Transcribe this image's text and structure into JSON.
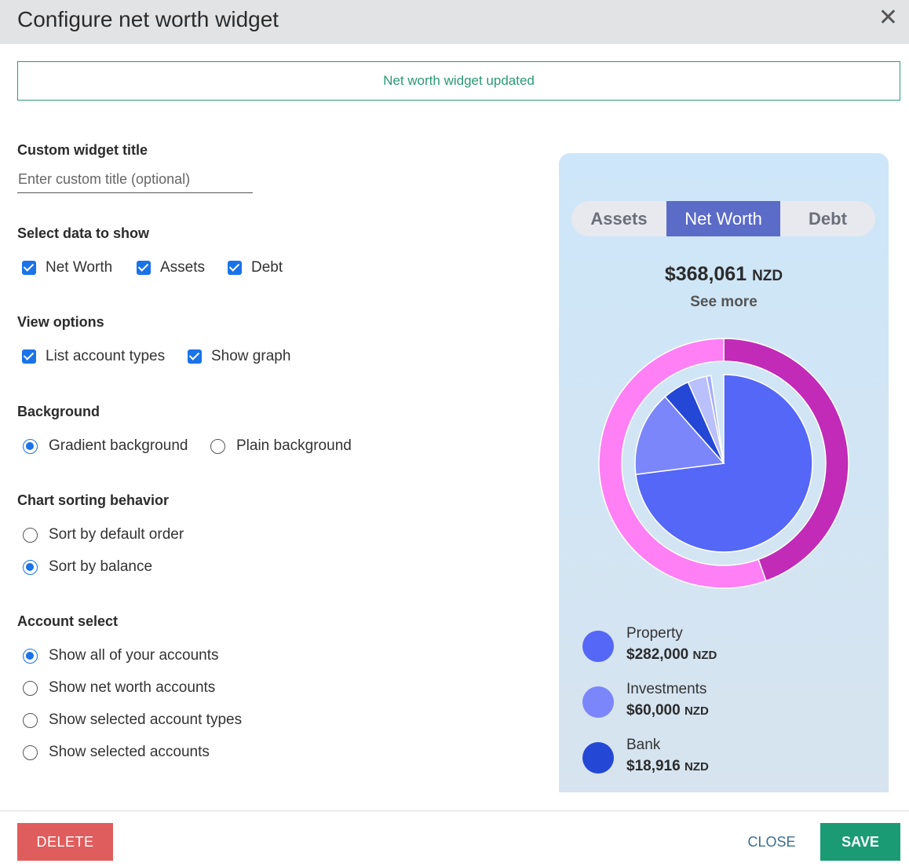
{
  "dialog": {
    "title": "Configure net worth widget",
    "close_icon": "close-icon"
  },
  "notice": "Net worth widget updated",
  "custom_title": {
    "label": "Custom widget title",
    "placeholder": "Enter custom title (optional)",
    "value": ""
  },
  "data_to_show": {
    "label": "Select data to show",
    "options": [
      {
        "label": "Net Worth",
        "checked": true
      },
      {
        "label": "Assets",
        "checked": true
      },
      {
        "label": "Debt",
        "checked": true
      }
    ]
  },
  "view_options": {
    "label": "View options",
    "options": [
      {
        "label": "List account types",
        "checked": true
      },
      {
        "label": "Show graph",
        "checked": true
      }
    ]
  },
  "background": {
    "label": "Background",
    "options": [
      {
        "label": "Gradient background",
        "selected": true
      },
      {
        "label": "Plain background",
        "selected": false
      }
    ]
  },
  "sorting": {
    "label": "Chart sorting behavior",
    "options": [
      {
        "label": "Sort by default order",
        "selected": false
      },
      {
        "label": "Sort by balance",
        "selected": true
      }
    ]
  },
  "account_select": {
    "label": "Account select",
    "options": [
      {
        "label": "Show all of your accounts",
        "selected": true
      },
      {
        "label": "Show net worth accounts",
        "selected": false
      },
      {
        "label": "Show selected account types",
        "selected": false
      },
      {
        "label": "Show selected accounts",
        "selected": false
      }
    ]
  },
  "preview": {
    "tabs": [
      {
        "label": "Assets",
        "active": false
      },
      {
        "label": "Net Worth",
        "active": true
      },
      {
        "label": "Debt",
        "active": false
      }
    ],
    "total": "$368,061",
    "total_currency": "NZD",
    "see_more": "See more",
    "legend": [
      {
        "name": "Property",
        "value": "$282,000",
        "currency": "NZD",
        "color": "#5467f6"
      },
      {
        "name": "Investments",
        "value": "$60,000",
        "currency": "NZD",
        "color": "#7b86fb"
      },
      {
        "name": "Bank",
        "value": "$18,916",
        "currency": "NZD",
        "color": "#2447d6"
      }
    ]
  },
  "chart_data": {
    "type": "pie",
    "outer_ring": [
      {
        "value": 0.445,
        "color": "#c12bb7"
      },
      {
        "value": 0.555,
        "color": "#ff7ff5"
      }
    ],
    "inner_pie": [
      {
        "value": 0.73,
        "color": "#5467f6"
      },
      {
        "value": 0.155,
        "color": "#7b86fb"
      },
      {
        "value": 0.049,
        "color": "#2447d6"
      },
      {
        "value": 0.035,
        "color": "#b9c0fb"
      },
      {
        "value": 0.008,
        "color": "#a4adfc"
      }
    ]
  },
  "footer": {
    "delete": "DELETE",
    "close": "CLOSE",
    "save": "SAVE"
  }
}
